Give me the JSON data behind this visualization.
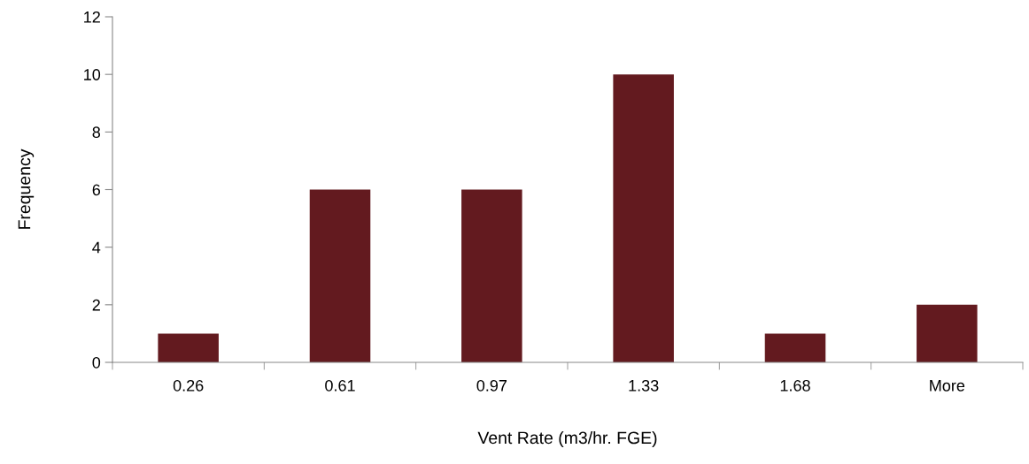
{
  "chart_data": {
    "type": "bar",
    "xlabel": "Vent Rate (m3/hr. FGE)",
    "ylabel": "Frequency",
    "categories": [
      "0.26",
      "0.61",
      "0.97",
      "1.33",
      "1.68",
      "More"
    ],
    "values": [
      1,
      6,
      6,
      10,
      1,
      2
    ],
    "color": "#631a1f",
    "ylim": [
      0,
      12
    ],
    "yticks": [
      0,
      2,
      4,
      6,
      8,
      10,
      12
    ],
    "grid": false,
    "legend": false
  }
}
